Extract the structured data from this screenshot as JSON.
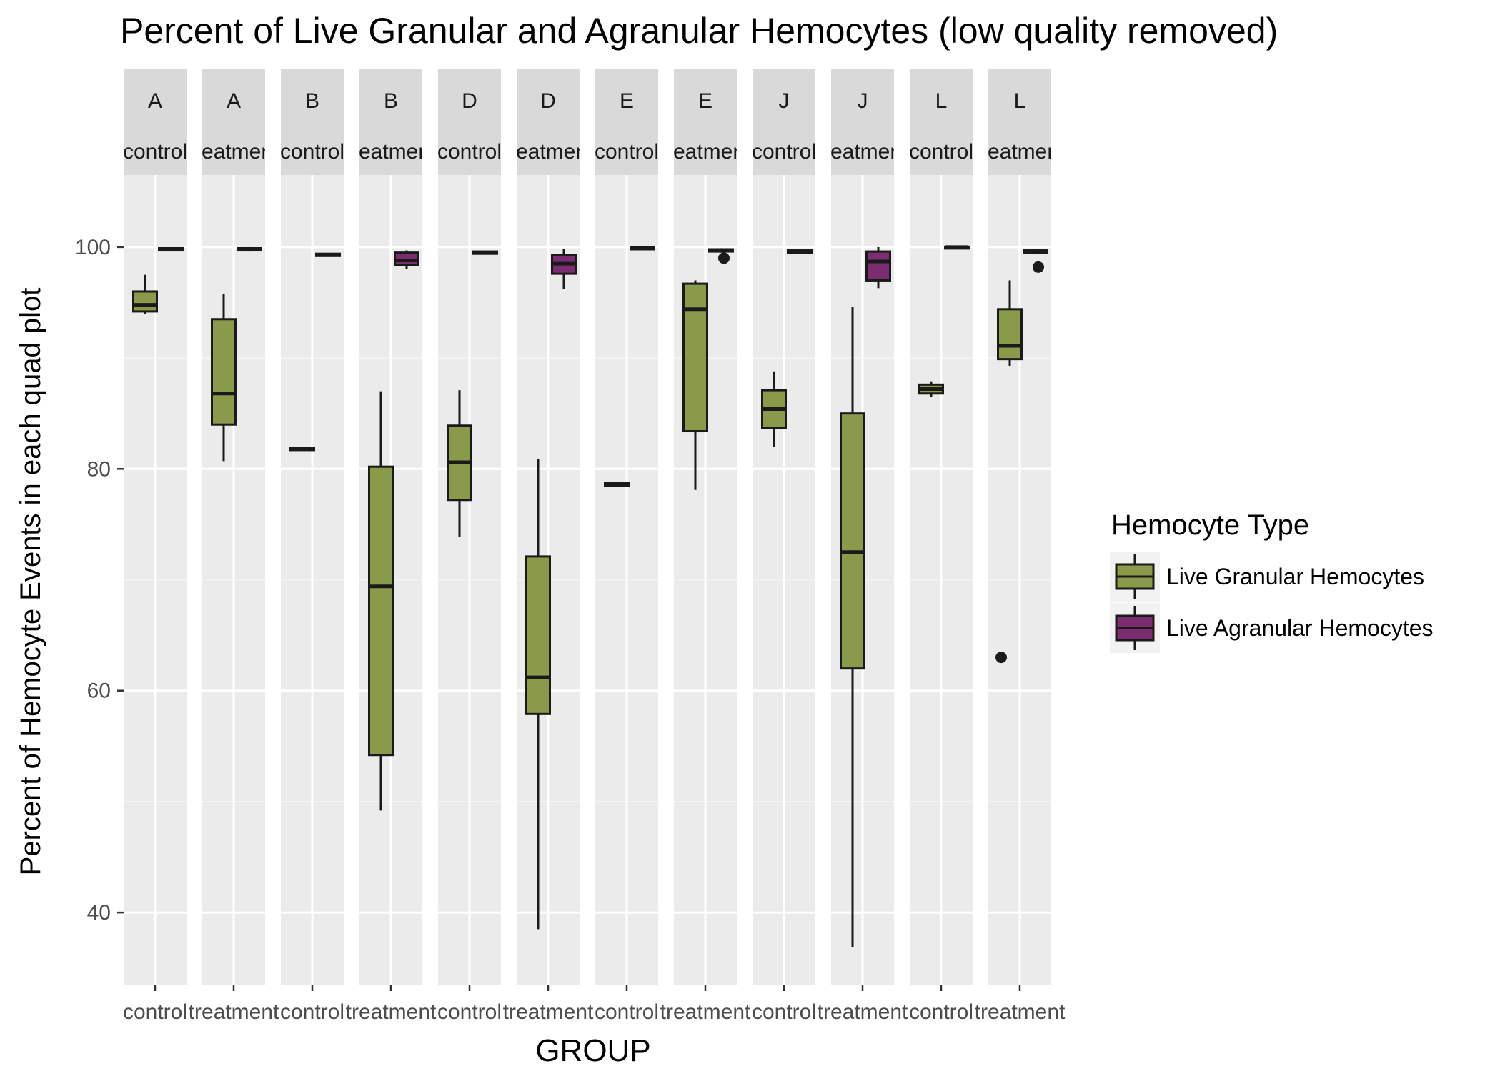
{
  "chart_data": {
    "type": "boxplot",
    "title": "Percent of Live Granular and Agranular Hemocytes (low quality removed)",
    "xlabel": "GROUP",
    "ylabel": "Percent of Hemocyte Events in each quad plot",
    "ylim": [
      33.5,
      106.5
    ],
    "yticks": [
      40,
      60,
      80,
      100
    ],
    "grid": true,
    "legend": {
      "title": "Hemocyte Type",
      "position": "right",
      "entries": [
        {
          "name": "Live Granular Hemocytes",
          "color": "#8a9a4b"
        },
        {
          "name": "Live Agranular Hemocytes",
          "color": "#7b2d6f"
        }
      ]
    },
    "panels": [
      {
        "strip_top": "A",
        "strip_bottom": "control",
        "x_tick": "control",
        "granular": {
          "whisker_low": 94.0,
          "q1": 94.2,
          "median": 94.8,
          "q3": 96.0,
          "whisker_high": 97.5,
          "outliers": []
        },
        "agranular": {
          "whisker_low": 99.7,
          "q1": 99.7,
          "median": 99.8,
          "q3": 99.9,
          "whisker_high": 99.9,
          "outliers": []
        }
      },
      {
        "strip_top": "A",
        "strip_bottom": "treatment",
        "x_tick": "treatment",
        "granular": {
          "whisker_low": 80.7,
          "q1": 84.0,
          "median": 86.8,
          "q3": 93.5,
          "whisker_high": 95.8,
          "outliers": []
        },
        "agranular": {
          "whisker_low": 99.6,
          "q1": 99.7,
          "median": 99.8,
          "q3": 99.9,
          "whisker_high": 100.0,
          "outliers": []
        }
      },
      {
        "strip_top": "B",
        "strip_bottom": "control",
        "x_tick": "control",
        "granular": {
          "whisker_low": 81.7,
          "q1": 81.7,
          "median": 81.8,
          "q3": 81.9,
          "whisker_high": 81.9,
          "outliers": []
        },
        "agranular": {
          "whisker_low": 99.2,
          "q1": 99.2,
          "median": 99.3,
          "q3": 99.4,
          "whisker_high": 99.4,
          "outliers": []
        }
      },
      {
        "strip_top": "B",
        "strip_bottom": "treatment",
        "x_tick": "treatment",
        "granular": {
          "whisker_low": 49.2,
          "q1": 54.2,
          "median": 69.4,
          "q3": 80.2,
          "whisker_high": 87.0,
          "outliers": []
        },
        "agranular": {
          "whisker_low": 98.0,
          "q1": 98.4,
          "median": 98.8,
          "q3": 99.5,
          "whisker_high": 99.7,
          "outliers": []
        }
      },
      {
        "strip_top": "D",
        "strip_bottom": "control",
        "x_tick": "control",
        "granular": {
          "whisker_low": 73.9,
          "q1": 77.2,
          "median": 80.6,
          "q3": 83.9,
          "whisker_high": 87.1,
          "outliers": []
        },
        "agranular": {
          "whisker_low": 99.4,
          "q1": 99.4,
          "median": 99.5,
          "q3": 99.6,
          "whisker_high": 99.6,
          "outliers": []
        }
      },
      {
        "strip_top": "D",
        "strip_bottom": "treatment",
        "x_tick": "treatment",
        "granular": {
          "whisker_low": 38.5,
          "q1": 57.9,
          "median": 61.2,
          "q3": 72.1,
          "whisker_high": 80.9,
          "outliers": []
        },
        "agranular": {
          "whisker_low": 96.2,
          "q1": 97.6,
          "median": 98.5,
          "q3": 99.3,
          "whisker_high": 99.8,
          "outliers": []
        }
      },
      {
        "strip_top": "E",
        "strip_bottom": "control",
        "x_tick": "control",
        "granular": {
          "whisker_low": 78.5,
          "q1": 78.5,
          "median": 78.6,
          "q3": 78.7,
          "whisker_high": 78.7,
          "outliers": []
        },
        "agranular": {
          "whisker_low": 99.8,
          "q1": 99.8,
          "median": 99.9,
          "q3": 100.0,
          "whisker_high": 100.0,
          "outliers": []
        }
      },
      {
        "strip_top": "E",
        "strip_bottom": "treatment",
        "x_tick": "treatment",
        "granular": {
          "whisker_low": 78.1,
          "q1": 83.4,
          "median": 94.4,
          "q3": 96.7,
          "whisker_high": 97.0,
          "outliers": []
        },
        "agranular": {
          "whisker_low": 99.5,
          "q1": 99.6,
          "median": 99.7,
          "q3": 99.8,
          "whisker_high": 99.9,
          "outliers": [
            99.0
          ]
        }
      },
      {
        "strip_top": "J",
        "strip_bottom": "control",
        "x_tick": "control",
        "granular": {
          "whisker_low": 82.0,
          "q1": 83.7,
          "median": 85.4,
          "q3": 87.1,
          "whisker_high": 88.8,
          "outliers": []
        },
        "agranular": {
          "whisker_low": 99.5,
          "q1": 99.5,
          "median": 99.6,
          "q3": 99.7,
          "whisker_high": 99.7,
          "outliers": []
        }
      },
      {
        "strip_top": "J",
        "strip_bottom": "treatment",
        "x_tick": "treatment",
        "granular": {
          "whisker_low": 36.9,
          "q1": 62.0,
          "median": 72.5,
          "q3": 85.0,
          "whisker_high": 94.6,
          "outliers": []
        },
        "agranular": {
          "whisker_low": 96.3,
          "q1": 97.0,
          "median": 98.7,
          "q3": 99.6,
          "whisker_high": 100.0,
          "outliers": []
        }
      },
      {
        "strip_top": "L",
        "strip_bottom": "control",
        "x_tick": "control",
        "granular": {
          "whisker_low": 86.5,
          "q1": 86.8,
          "median": 87.2,
          "q3": 87.6,
          "whisker_high": 87.9,
          "outliers": []
        },
        "agranular": {
          "whisker_low": 99.9,
          "q1": 99.9,
          "median": 100.0,
          "q3": 100.0,
          "whisker_high": 100.0,
          "outliers": []
        }
      },
      {
        "strip_top": "L",
        "strip_bottom": "treatment",
        "x_tick": "treatment",
        "granular": {
          "whisker_low": 89.3,
          "q1": 89.9,
          "median": 91.1,
          "q3": 94.4,
          "whisker_high": 97.0,
          "outliers": [
            63.0
          ]
        },
        "agranular": {
          "whisker_low": 99.5,
          "q1": 99.5,
          "median": 99.6,
          "q3": 99.7,
          "whisker_high": 99.8,
          "outliers": [
            98.2
          ]
        }
      }
    ]
  }
}
